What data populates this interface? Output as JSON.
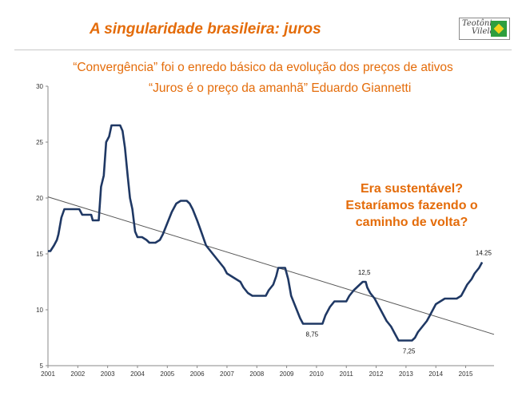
{
  "slide": {
    "title": "A singularidade brasileira: juros",
    "subtitle_line1": "“Convergência” foi o enredo básico da evolução dos preços de ativos",
    "subtitle_line2": "“Juros é o preço da amanhã” Eduardo Giannetti",
    "callout_lines": [
      "Era sustentável?",
      "Estaríamos fazendo o",
      "caminho de volta?"
    ],
    "logo": {
      "text_line1": "Teotônio",
      "text_line2": "Vilela",
      "colors": {
        "green": "#2e9e3e",
        "yellow": "#f2d21b"
      }
    }
  },
  "colors": {
    "accent": "#e46c0a",
    "series": "#1f3864",
    "trend": "#555555",
    "axis": "#888888"
  },
  "chart_data": {
    "type": "line",
    "title": "",
    "xlabel": "",
    "ylabel": "",
    "xlim": [
      2001,
      2015.95
    ],
    "ylim": [
      5,
      30
    ],
    "yticks": [
      5,
      10,
      15,
      20,
      25,
      30
    ],
    "xticks": [
      "2001",
      "2002",
      "2003",
      "2004",
      "2005",
      "2006",
      "2007",
      "2008",
      "2009",
      "2010",
      "2011",
      "2012",
      "2013",
      "2014",
      "2015"
    ],
    "grid": false,
    "legend": "none",
    "series": [
      {
        "points": [
          [
            2001.0,
            15.25
          ],
          [
            2001.08,
            15.25
          ],
          [
            2001.2,
            15.75
          ],
          [
            2001.3,
            16.25
          ],
          [
            2001.35,
            16.75
          ],
          [
            2001.45,
            18.25
          ],
          [
            2001.55,
            19.0
          ],
          [
            2001.7,
            19.0
          ],
          [
            2001.9,
            19.0
          ],
          [
            2002.05,
            19.0
          ],
          [
            2002.15,
            18.5
          ],
          [
            2002.3,
            18.5
          ],
          [
            2002.45,
            18.5
          ],
          [
            2002.5,
            18.0
          ],
          [
            2002.6,
            18.0
          ],
          [
            2002.7,
            18.0
          ],
          [
            2002.78,
            21.0
          ],
          [
            2002.87,
            22.0
          ],
          [
            2002.95,
            25.0
          ],
          [
            2003.05,
            25.5
          ],
          [
            2003.13,
            26.5
          ],
          [
            2003.3,
            26.5
          ],
          [
            2003.42,
            26.5
          ],
          [
            2003.5,
            26.0
          ],
          [
            2003.58,
            24.5
          ],
          [
            2003.67,
            22.0
          ],
          [
            2003.75,
            20.0
          ],
          [
            2003.83,
            19.0
          ],
          [
            2003.92,
            17.0
          ],
          [
            2004.0,
            16.5
          ],
          [
            2004.15,
            16.5
          ],
          [
            2004.3,
            16.25
          ],
          [
            2004.4,
            16.0
          ],
          [
            2004.6,
            16.0
          ],
          [
            2004.75,
            16.25
          ],
          [
            2004.85,
            16.75
          ],
          [
            2005.0,
            17.75
          ],
          [
            2005.15,
            18.75
          ],
          [
            2005.3,
            19.5
          ],
          [
            2005.45,
            19.75
          ],
          [
            2005.65,
            19.75
          ],
          [
            2005.75,
            19.5
          ],
          [
            2005.85,
            19.0
          ],
          [
            2006.0,
            18.0
          ],
          [
            2006.1,
            17.25
          ],
          [
            2006.2,
            16.5
          ],
          [
            2006.3,
            15.75
          ],
          [
            2006.45,
            15.25
          ],
          [
            2006.6,
            14.75
          ],
          [
            2006.75,
            14.25
          ],
          [
            2006.9,
            13.75
          ],
          [
            2007.0,
            13.25
          ],
          [
            2007.15,
            13.0
          ],
          [
            2007.3,
            12.75
          ],
          [
            2007.45,
            12.5
          ],
          [
            2007.55,
            12.0
          ],
          [
            2007.7,
            11.5
          ],
          [
            2007.85,
            11.25
          ],
          [
            2008.0,
            11.25
          ],
          [
            2008.15,
            11.25
          ],
          [
            2008.3,
            11.25
          ],
          [
            2008.4,
            11.75
          ],
          [
            2008.55,
            12.25
          ],
          [
            2008.65,
            13.0
          ],
          [
            2008.72,
            13.75
          ],
          [
            2008.95,
            13.75
          ],
          [
            2009.0,
            13.25
          ],
          [
            2009.05,
            12.75
          ],
          [
            2009.15,
            11.25
          ],
          [
            2009.3,
            10.25
          ],
          [
            2009.45,
            9.25
          ],
          [
            2009.55,
            8.75
          ],
          [
            2009.75,
            8.75
          ],
          [
            2010.0,
            8.75
          ],
          [
            2010.2,
            8.75
          ],
          [
            2010.3,
            9.5
          ],
          [
            2010.45,
            10.25
          ],
          [
            2010.6,
            10.75
          ],
          [
            2010.8,
            10.75
          ],
          [
            2011.0,
            10.75
          ],
          [
            2011.1,
            11.25
          ],
          [
            2011.25,
            11.75
          ],
          [
            2011.45,
            12.25
          ],
          [
            2011.55,
            12.5
          ],
          [
            2011.65,
            12.5
          ],
          [
            2011.7,
            12.0
          ],
          [
            2011.8,
            11.5
          ],
          [
            2011.95,
            11.0
          ],
          [
            2012.05,
            10.5
          ],
          [
            2012.2,
            9.75
          ],
          [
            2012.35,
            9.0
          ],
          [
            2012.5,
            8.5
          ],
          [
            2012.65,
            7.75
          ],
          [
            2012.75,
            7.25
          ],
          [
            2013.0,
            7.25
          ],
          [
            2013.2,
            7.25
          ],
          [
            2013.3,
            7.5
          ],
          [
            2013.4,
            8.0
          ],
          [
            2013.55,
            8.5
          ],
          [
            2013.7,
            9.0
          ],
          [
            2013.8,
            9.5
          ],
          [
            2013.9,
            10.0
          ],
          [
            2014.0,
            10.5
          ],
          [
            2014.15,
            10.75
          ],
          [
            2014.3,
            11.0
          ],
          [
            2014.5,
            11.0
          ],
          [
            2014.7,
            11.0
          ],
          [
            2014.85,
            11.25
          ],
          [
            2014.95,
            11.75
          ],
          [
            2015.05,
            12.25
          ],
          [
            2015.2,
            12.75
          ],
          [
            2015.3,
            13.25
          ],
          [
            2015.45,
            13.75
          ],
          [
            2015.55,
            14.25
          ]
        ]
      }
    ],
    "trendline": {
      "start": [
        2001.0,
        20.1
      ],
      "end": [
        2015.95,
        7.8
      ]
    },
    "annotations": [
      {
        "text": "12,5",
        "x": 2011.6,
        "y": 12.5
      },
      {
        "text": "8,75",
        "x": 2009.85,
        "y": 8.75
      },
      {
        "text": "7,25",
        "x": 2013.1,
        "y": 7.25
      },
      {
        "text": "14.25",
        "x": 2015.6,
        "y": 14.25
      }
    ]
  }
}
